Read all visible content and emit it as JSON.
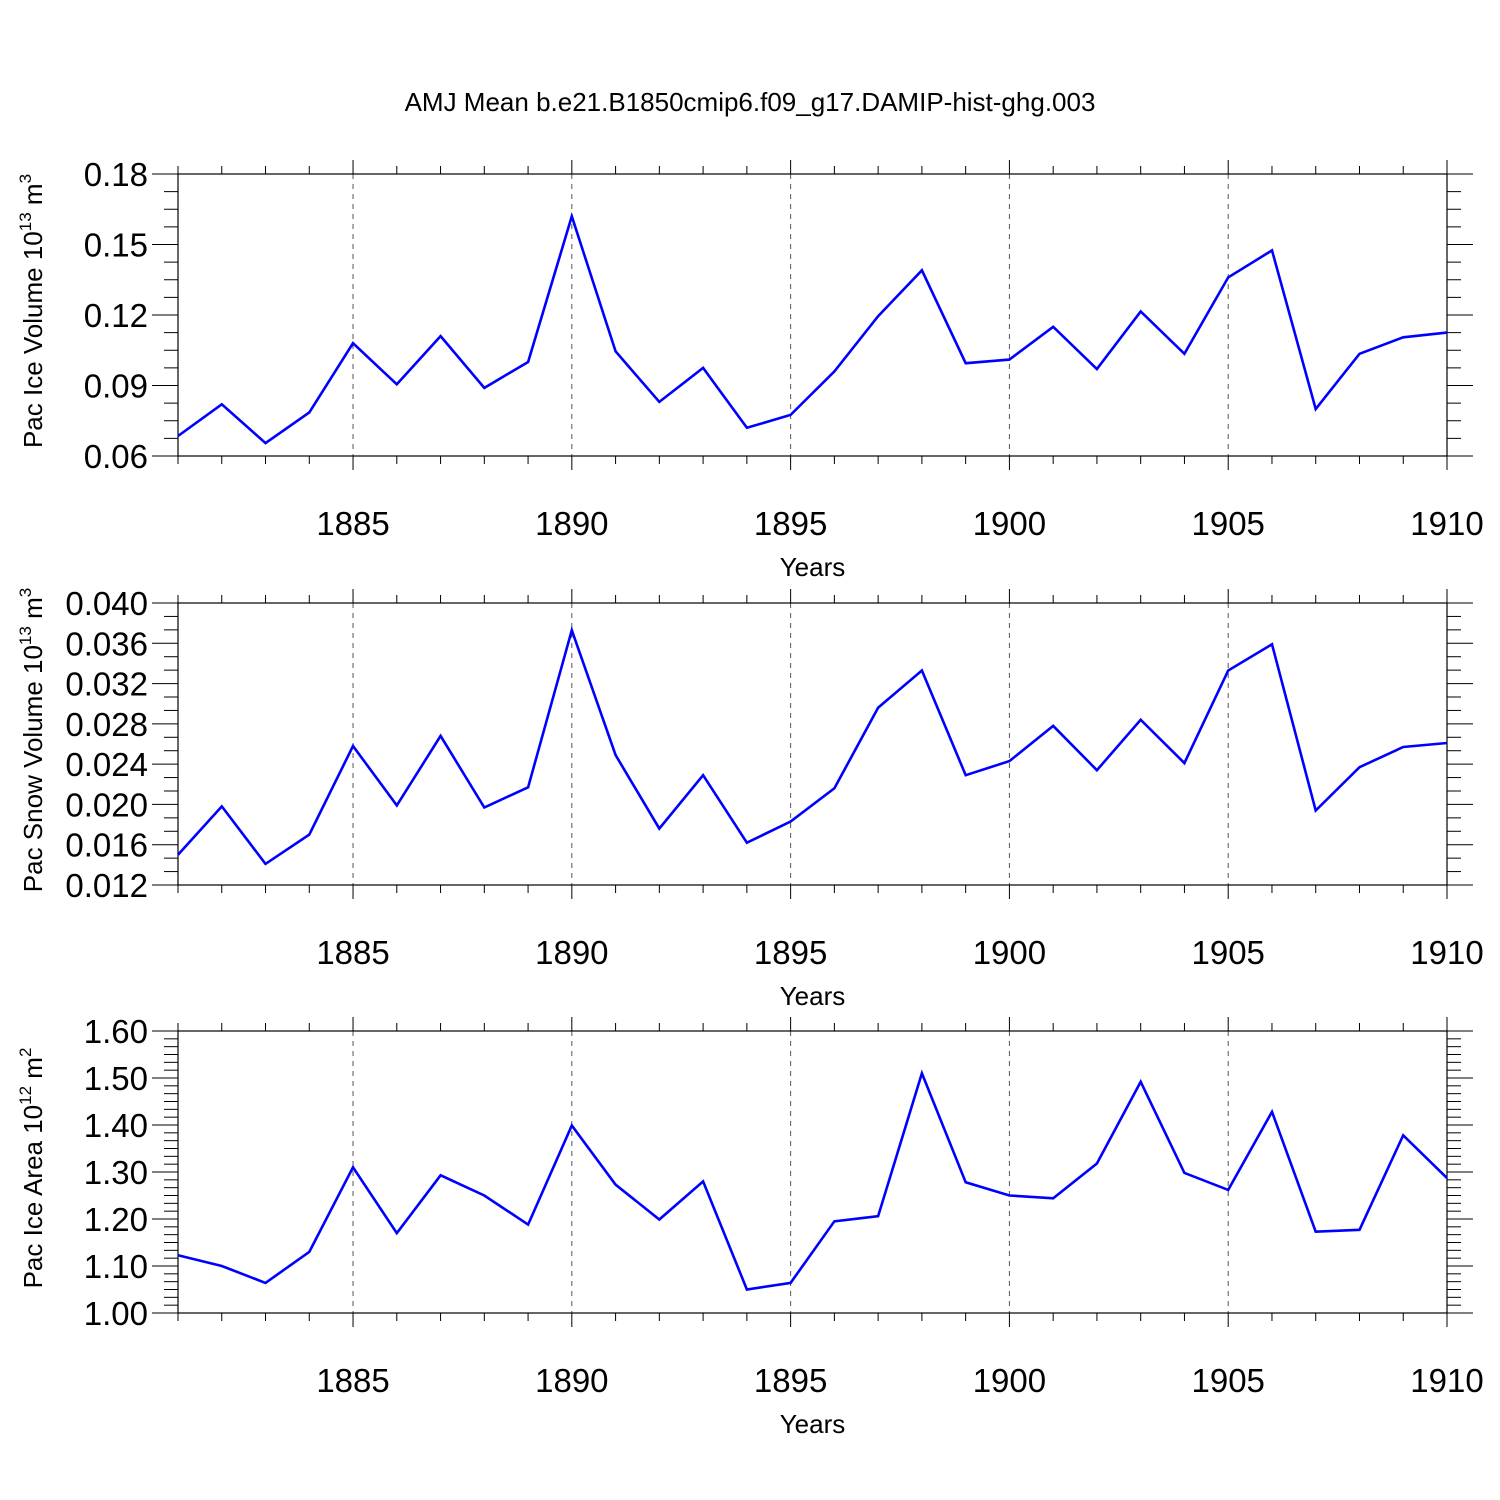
{
  "title": "AMJ Mean b.e21.B1850cmip6.f09_g17.DAMIP-hist-ghg.003",
  "line_color": "#0000ff",
  "chart_data": [
    {
      "type": "line",
      "ylabel": {
        "text": "Pac Ice Volume 10",
        "exp": "13",
        "unit": " m",
        "unit_exp": "3"
      },
      "xlabel": "Years",
      "xlim": [
        1881,
        1910
      ],
      "ylim": [
        0.06,
        0.18
      ],
      "ytick_values": [
        0.06,
        0.09,
        0.12,
        0.15,
        0.18
      ],
      "ytick_labels": [
        "0.06",
        "0.09",
        "0.12",
        "0.15",
        "0.18"
      ],
      "xtick_values": [
        1885,
        1890,
        1895,
        1900,
        1905,
        1910
      ],
      "xtick_labels": [
        "1885",
        "1890",
        "1895",
        "1900",
        "1905",
        "1910"
      ],
      "grid": "vertical dashed at labeled years",
      "series": [
        {
          "x": [
            1881,
            1882,
            1883,
            1884,
            1885,
            1886,
            1887,
            1888,
            1889,
            1890,
            1891,
            1892,
            1893,
            1894,
            1895,
            1896,
            1897,
            1898,
            1899,
            1900,
            1901,
            1902,
            1903,
            1904,
            1905,
            1906,
            1907,
            1908,
            1909,
            1910
          ],
          "values": [
            0.0685,
            0.082,
            0.0655,
            0.0785,
            0.108,
            0.0905,
            0.111,
            0.089,
            0.1,
            0.162,
            0.1045,
            0.083,
            0.0975,
            0.072,
            0.0775,
            0.096,
            0.1195,
            0.139,
            0.0995,
            0.101,
            0.115,
            0.097,
            0.1215,
            0.1035,
            0.136,
            0.1475,
            0.08,
            0.1035,
            0.1105,
            0.1125
          ]
        }
      ]
    },
    {
      "type": "line",
      "ylabel": {
        "text": "Pac Snow Volume 10",
        "exp": "13",
        "unit": " m",
        "unit_exp": "3"
      },
      "xlabel": "Years",
      "xlim": [
        1881,
        1910
      ],
      "ylim": [
        0.012,
        0.04
      ],
      "ytick_values": [
        0.012,
        0.016,
        0.02,
        0.024,
        0.028,
        0.032,
        0.036,
        0.04
      ],
      "ytick_labels": [
        "0.012",
        "0.016",
        "0.020",
        "0.024",
        "0.028",
        "0.032",
        "0.036",
        "0.040"
      ],
      "xtick_values": [
        1885,
        1890,
        1895,
        1900,
        1905,
        1910
      ],
      "xtick_labels": [
        "1885",
        "1890",
        "1895",
        "1900",
        "1905",
        "1910"
      ],
      "grid": "vertical dashed at labeled years",
      "series": [
        {
          "x": [
            1881,
            1882,
            1883,
            1884,
            1885,
            1886,
            1887,
            1888,
            1889,
            1890,
            1891,
            1892,
            1893,
            1894,
            1895,
            1896,
            1897,
            1898,
            1899,
            1900,
            1901,
            1902,
            1903,
            1904,
            1905,
            1906,
            1907,
            1908,
            1909,
            1910
          ],
          "values": [
            0.015,
            0.0198,
            0.0141,
            0.017,
            0.0258,
            0.0199,
            0.0268,
            0.0197,
            0.0217,
            0.0373,
            0.0249,
            0.0176,
            0.0229,
            0.0162,
            0.0183,
            0.0216,
            0.0296,
            0.0333,
            0.0229,
            0.0243,
            0.0278,
            0.0234,
            0.0284,
            0.0241,
            0.0333,
            0.0359,
            0.0194,
            0.0237,
            0.0257,
            0.0261
          ]
        }
      ]
    },
    {
      "type": "line",
      "ylabel": {
        "text": "Pac Ice Area 10",
        "exp": "12",
        "unit": " m",
        "unit_exp": "2"
      },
      "xlabel": "Years",
      "xlim": [
        1881,
        1910
      ],
      "ylim": [
        1.0,
        1.6
      ],
      "ytick_values": [
        1.0,
        1.1,
        1.2,
        1.3,
        1.4,
        1.5,
        1.6
      ],
      "ytick_labels": [
        "1.00",
        "1.10",
        "1.20",
        "1.30",
        "1.40",
        "1.50",
        "1.60"
      ],
      "xtick_values": [
        1885,
        1890,
        1895,
        1900,
        1905,
        1910
      ],
      "xtick_labels": [
        "1885",
        "1890",
        "1895",
        "1900",
        "1905",
        "1910"
      ],
      "grid": "vertical dashed at labeled years",
      "series": [
        {
          "x": [
            1881,
            1882,
            1883,
            1884,
            1885,
            1886,
            1887,
            1888,
            1889,
            1890,
            1891,
            1892,
            1893,
            1894,
            1895,
            1896,
            1897,
            1898,
            1899,
            1900,
            1901,
            1902,
            1903,
            1904,
            1905,
            1906,
            1907,
            1908,
            1909,
            1910
          ],
          "values": [
            1.123,
            1.1,
            1.064,
            1.13,
            1.31,
            1.17,
            1.293,
            1.25,
            1.188,
            1.399,
            1.273,
            1.199,
            1.28,
            1.05,
            1.064,
            1.195,
            1.206,
            1.51,
            1.278,
            1.25,
            1.244,
            1.318,
            1.492,
            1.298,
            1.262,
            1.428,
            1.173,
            1.177,
            1.378,
            1.287
          ]
        }
      ]
    }
  ]
}
